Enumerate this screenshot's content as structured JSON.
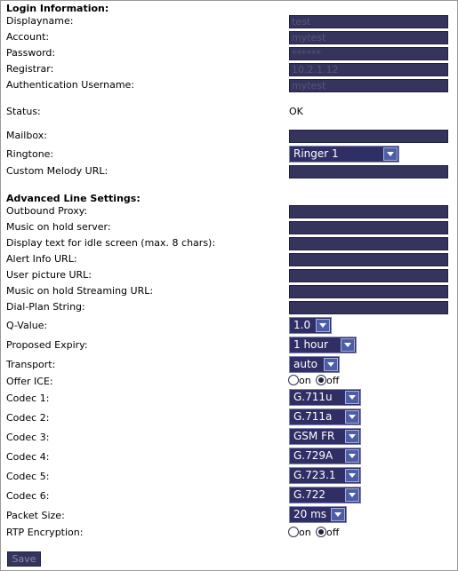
{
  "login": {
    "section_title": "Login Information:",
    "displayname_label": "Displayname:",
    "displayname_value": "test",
    "account_label": "Account:",
    "account_value": "mytest",
    "password_label": "Password:",
    "password_value": "******",
    "registrar_label": "Registrar:",
    "registrar_value": "10.2.1.12",
    "auth_username_label": "Authentication Username:",
    "auth_username_value": "mytest",
    "status_label": "Status:",
    "status_value": "OK",
    "mailbox_label": "Mailbox:",
    "mailbox_value": "",
    "ringtone_label": "Ringtone:",
    "ringtone_value": "Ringer 1",
    "custom_melody_label": "Custom Melody URL:",
    "custom_melody_value": ""
  },
  "advanced": {
    "section_title": "Advanced Line Settings:",
    "outbound_proxy_label": "Outbound Proxy:",
    "music_hold_server_label": "Music on hold server:",
    "idle_text_label": "Display text for idle screen (max. 8 chars):",
    "alert_info_label": "Alert Info URL:",
    "user_picture_label": "User picture URL:",
    "music_hold_streaming_label": "Music on hold Streaming URL:",
    "dial_plan_label": "Dial-Plan String:",
    "q_value_label": "Q-Value:",
    "q_value": "1.0",
    "proposed_expiry_label": "Proposed Expiry:",
    "proposed_expiry_value": "1 hour",
    "transport_label": "Transport:",
    "transport_value": "auto",
    "offer_ice_label": "Offer ICE:",
    "radio_on_label": "on",
    "radio_off_label": "off",
    "codec1_label": "Codec 1:",
    "codec1_value": "G.711u",
    "codec2_label": "Codec 2:",
    "codec2_value": "G.711a",
    "codec3_label": "Codec 3:",
    "codec3_value": "GSM FR",
    "codec4_label": "Codec 4:",
    "codec4_value": "G.729A",
    "codec5_label": "Codec 5:",
    "codec5_value": "G.723.1",
    "codec6_label": "Codec 6:",
    "codec6_value": "G.722",
    "packet_size_label": "Packet Size:",
    "packet_size_value": "20 ms",
    "rtp_encryption_label": "RTP Encryption:"
  },
  "save_label": "Save",
  "icons": {
    "select_arrow": "chevron-down-icon",
    "radio": "radio-icon"
  },
  "colors": {
    "field_bg": "#35345d",
    "select_bg": "#2f2f66",
    "arrow_bg": "#4d5ea8"
  }
}
